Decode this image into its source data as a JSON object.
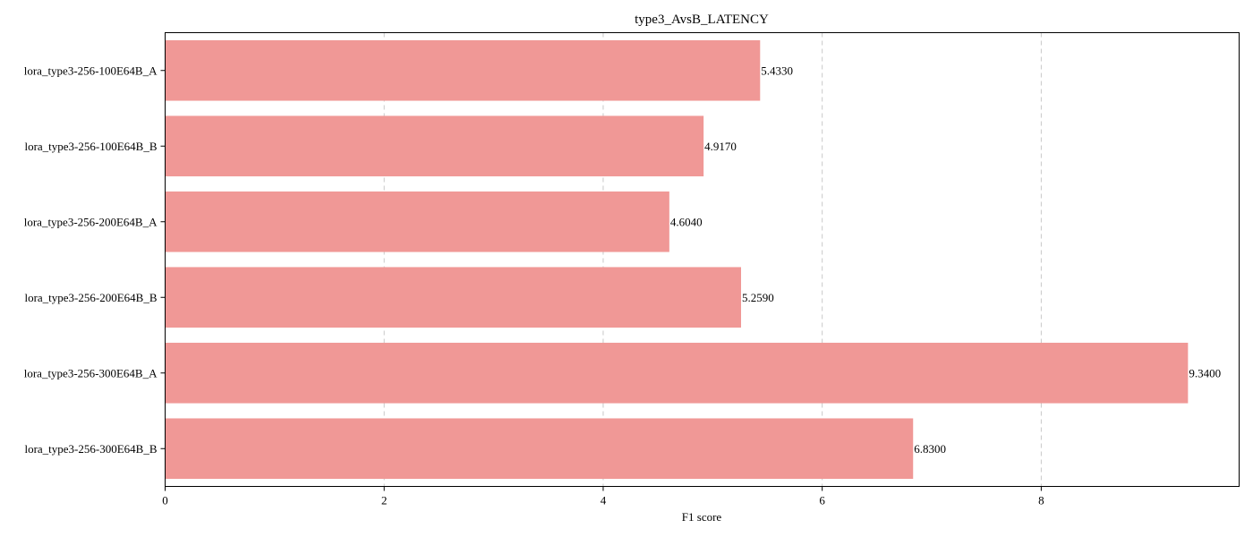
{
  "chart_data": {
    "type": "bar",
    "orientation": "horizontal",
    "title": "type3_AvsB_LATENCY",
    "xlabel": "F1 score",
    "ylabel": "",
    "categories": [
      "lora_type3-256-100E64B_A",
      "lora_type3-256-100E64B_B",
      "lora_type3-256-200E64B_A",
      "lora_type3-256-200E64B_B",
      "lora_type3-256-300E64B_A",
      "lora_type3-256-300E64B_B"
    ],
    "values": [
      5.433,
      4.917,
      4.604,
      5.259,
      9.34,
      6.83
    ],
    "value_labels": [
      "5.4330",
      "4.9170",
      "4.6040",
      "5.2590",
      "9.3400",
      "6.8300"
    ],
    "xlim": [
      0,
      9.807
    ],
    "xticks": [
      0,
      2,
      4,
      6,
      8
    ],
    "xtick_labels": [
      "0",
      "2",
      "4",
      "6",
      "8"
    ],
    "grid": "x-dashed",
    "bar_color": "#f09896"
  }
}
